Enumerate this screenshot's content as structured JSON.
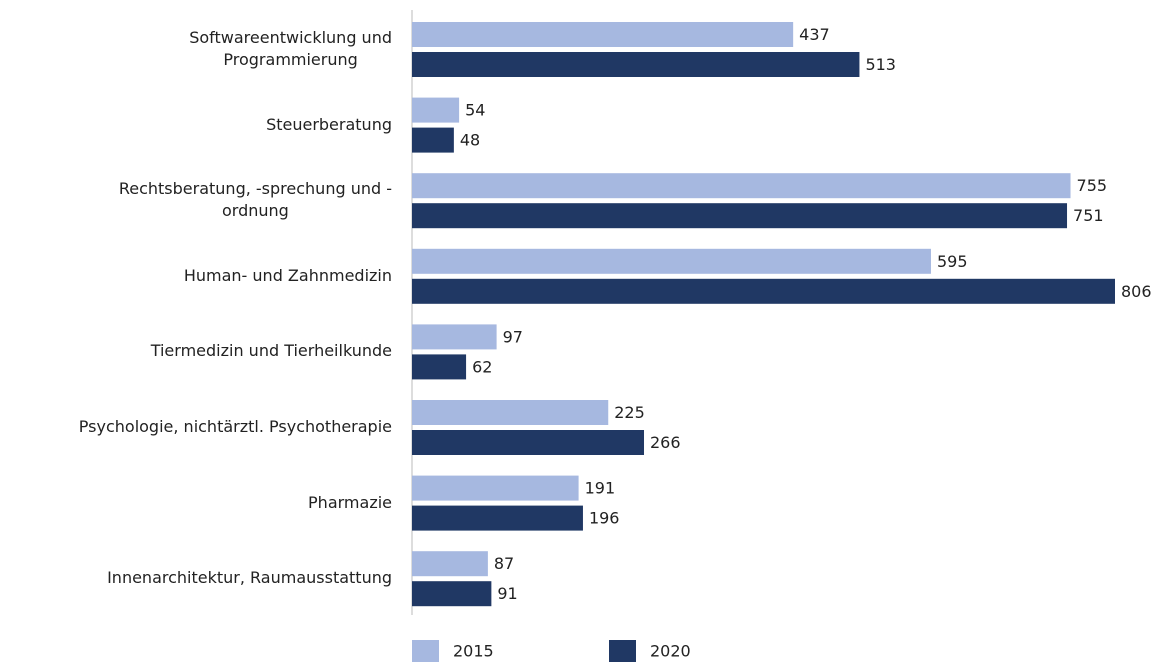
{
  "chart_data": {
    "type": "bar",
    "orientation": "horizontal",
    "categories": [
      "Softwareentwicklung und\nProgrammierung",
      "Steuerberatung",
      "Rechtsberatung, -sprechung und -\nordnung",
      "Human- und Zahnmedizin",
      "Tiermedizin und Tierheilkunde",
      "Psychologie, nichtärztl. Psychotherapie",
      "Pharmazie",
      "Innenarchitektur, Raumausstattung"
    ],
    "series": [
      {
        "name": "2015",
        "color": "#a6b8e0",
        "values": [
          437,
          54,
          755,
          595,
          97,
          225,
          191,
          87
        ]
      },
      {
        "name": "2020",
        "color": "#203864",
        "values": [
          513,
          48,
          751,
          806,
          62,
          266,
          196,
          91
        ]
      }
    ],
    "legend": "bottom"
  }
}
